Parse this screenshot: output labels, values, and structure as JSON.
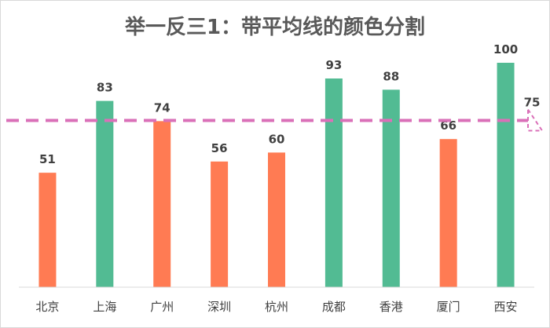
{
  "colors": {
    "above": "#52BB93",
    "below": "#FF7B53",
    "avg_line": "#DA70B8",
    "axis": "#d9d9d9"
  },
  "chart_data": {
    "type": "bar",
    "title": "举一反三1：带平均线的颜色分割",
    "categories": [
      "北京",
      "上海",
      "广州",
      "深圳",
      "杭州",
      "成都",
      "香港",
      "厦门",
      "西安"
    ],
    "values": [
      51,
      83,
      74,
      56,
      60,
      93,
      88,
      66,
      100
    ],
    "average": 75,
    "average_label": "75",
    "ylim": [
      0,
      100
    ],
    "xlabel": "",
    "ylabel": "",
    "grid": false,
    "legend": "none"
  }
}
